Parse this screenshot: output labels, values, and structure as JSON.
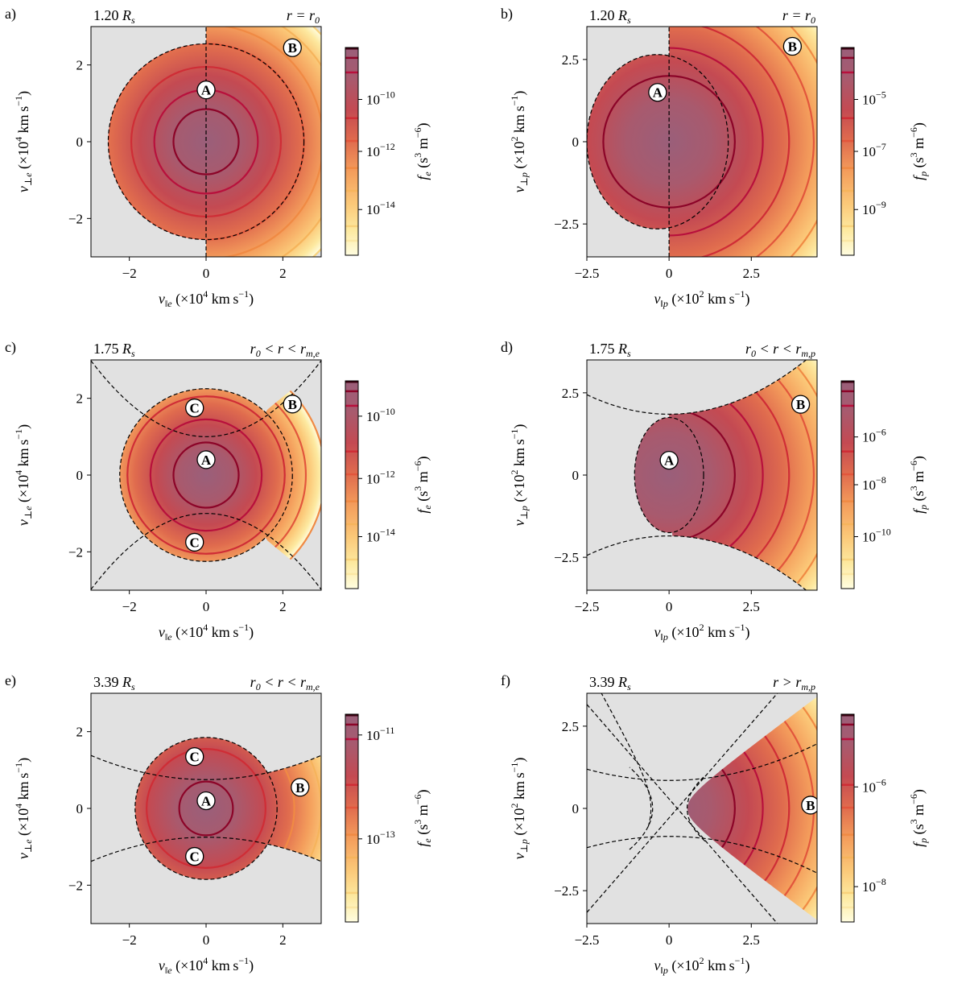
{
  "colormap": [
    "#fffde0",
    "#fde9a0",
    "#fbc878",
    "#f49e5c",
    "#e06c4e",
    "#c44a52",
    "#a85a6e",
    "#9a5f7a"
  ],
  "contour_colors": [
    "#fbe7a4",
    "#f8d27c",
    "#f6b45c",
    "#f08a44",
    "#e2563c",
    "#cf2d36",
    "#b8103c",
    "#8c0428"
  ],
  "forbidden_color": "#e1e1e1",
  "chart_data": [
    {
      "panel": "a)",
      "type": "heatmap",
      "species": "electron",
      "radius_label": "1.20",
      "radius_unit": "R",
      "radius_sub": "s",
      "region": {
        "lhs": "r = r",
        "sub": "0",
        "tail": ""
      },
      "xlim": [
        -3,
        3
      ],
      "ylim": [
        -3,
        3
      ],
      "xticks": [
        -2,
        0,
        2
      ],
      "xtick_labels": [
        "-2",
        "0",
        "2"
      ],
      "yticks": [
        -2,
        0,
        2
      ],
      "ytick_labels": [
        "-2",
        "0",
        "2"
      ],
      "xlabel": {
        "v": "v",
        "sub": "‖e",
        "rest": "(×10",
        "exp": "4",
        "unit": "km s",
        "uexp": "−1",
        "close": ")"
      },
      "ylabel": {
        "v": "v",
        "sub": "⊥e",
        "rest": "(×10",
        "exp": "4",
        "unit": "km s",
        "uexp": "−1",
        "close": ")"
      },
      "colorbar": {
        "label_f": "f",
        "label_sub": "e",
        "label_unit": "(s",
        "u1": "3",
        "m": "m",
        "u2": "−6",
        "close": ")",
        "ticks": [
          {
            "pos": 0.25,
            "exp": "−10"
          },
          {
            "pos": 0.5,
            "exp": "−12"
          },
          {
            "pos": 0.78,
            "exp": "−14"
          }
        ],
        "levels": [
          0.05,
          0.12,
          0.34,
          0.45,
          0.58,
          0.69,
          0.86,
          0.93
        ]
      },
      "contour_levels_speed": [
        0.85,
        1.35,
        1.95,
        2.55,
        3.05,
        3.6,
        4.1
      ],
      "contour_colors_idx": [
        7,
        6,
        5,
        4,
        3,
        2,
        1
      ],
      "kind": "a",
      "labels": [
        {
          "text": "A",
          "x": 0.0,
          "y": 1.35
        },
        {
          "text": "B",
          "x": 2.25,
          "y": 2.45
        }
      ]
    },
    {
      "panel": "b)",
      "type": "heatmap",
      "species": "proton",
      "radius_label": "1.20",
      "radius_unit": "R",
      "radius_sub": "s",
      "region": {
        "lhs": "r = r",
        "sub": "0",
        "tail": ""
      },
      "xlim": [
        -2.5,
        4.5
      ],
      "ylim": [
        -3.5,
        3.5
      ],
      "xticks": [
        -2.5,
        0,
        2.5
      ],
      "xtick_labels": [
        "-2.5",
        "0",
        "2.5"
      ],
      "yticks": [
        -2.5,
        0,
        2.5
      ],
      "ytick_labels": [
        "-2.5",
        "0",
        "2.5"
      ],
      "xlabel": {
        "v": "v",
        "sub": "‖p",
        "rest": "(×10",
        "exp": "2",
        "unit": "km s",
        "uexp": "−1",
        "close": ")"
      },
      "ylabel": {
        "v": "v",
        "sub": "⊥p",
        "rest": "(×10",
        "exp": "2",
        "unit": "km s",
        "uexp": "−1",
        "close": ")"
      },
      "colorbar": {
        "label_f": "f",
        "label_sub": "p",
        "label_unit": "(s",
        "u1": "3",
        "m": "m",
        "u2": "−6",
        "close": ")",
        "ticks": [
          {
            "pos": 0.25,
            "exp": "−5"
          },
          {
            "pos": 0.5,
            "exp": "−7"
          },
          {
            "pos": 0.78,
            "exp": "−9"
          }
        ],
        "levels": [
          0.05,
          0.12,
          0.34,
          0.45,
          0.58,
          0.69,
          0.86,
          0.93
        ]
      },
      "contour_levels_speed": [
        2.0,
        2.85,
        3.65,
        4.4,
        5.1,
        5.8
      ],
      "contour_colors_idx": [
        7,
        6,
        5,
        4,
        3,
        2
      ],
      "kind": "b",
      "labels": [
        {
          "text": "A",
          "x": -0.35,
          "y": 1.5
        },
        {
          "text": "B",
          "x": 3.75,
          "y": 2.9
        }
      ]
    },
    {
      "panel": "c)",
      "type": "heatmap",
      "species": "electron",
      "radius_label": "1.75",
      "radius_unit": "R",
      "radius_sub": "s",
      "region": {
        "lhs": "r",
        "sub": "0",
        "tail": " < r < r",
        "tsub": "m,e"
      },
      "xlim": [
        -3,
        3
      ],
      "ylim": [
        -3,
        3
      ],
      "xticks": [
        -2,
        0,
        2
      ],
      "xtick_labels": [
        "-2",
        "0",
        "2"
      ],
      "yticks": [
        -2,
        0,
        2
      ],
      "ytick_labels": [
        "-2",
        "0",
        "2"
      ],
      "xlabel": {
        "v": "v",
        "sub": "‖e",
        "rest": "(×10",
        "exp": "4",
        "unit": "km s",
        "uexp": "−1",
        "close": ")"
      },
      "ylabel": {
        "v": "v",
        "sub": "⊥e",
        "rest": "(×10",
        "exp": "4",
        "unit": "km s",
        "uexp": "−1",
        "close": ")"
      },
      "colorbar": {
        "label_f": "f",
        "label_sub": "e",
        "label_unit": "(s",
        "u1": "3",
        "m": "m",
        "u2": "−6",
        "close": ")",
        "ticks": [
          {
            "pos": 0.17,
            "exp": "−10"
          },
          {
            "pos": 0.47,
            "exp": "−12"
          },
          {
            "pos": 0.75,
            "exp": "−14"
          }
        ],
        "levels": [
          0.05,
          0.12,
          0.34,
          0.45,
          0.58,
          0.69,
          0.86,
          0.93
        ]
      },
      "contour_levels_speed": [
        0.85,
        1.45,
        2.05,
        2.6,
        3.1
      ],
      "contour_colors_idx": [
        7,
        6,
        5,
        4,
        3
      ],
      "kind": "c",
      "labels": [
        {
          "text": "A",
          "x": 0.0,
          "y": 0.4
        },
        {
          "text": "B",
          "x": 2.25,
          "y": 1.85
        },
        {
          "text": "C",
          "x": -0.3,
          "y": 1.75
        },
        {
          "text": "C",
          "x": -0.3,
          "y": -1.75
        }
      ]
    },
    {
      "panel": "d)",
      "type": "heatmap",
      "species": "proton",
      "radius_label": "1.75",
      "radius_unit": "R",
      "radius_sub": "s",
      "region": {
        "lhs": "r",
        "sub": "0",
        "tail": " < r < r",
        "tsub": "m,p"
      },
      "xlim": [
        -2.5,
        4.5
      ],
      "ylim": [
        -3.5,
        3.5
      ],
      "xticks": [
        -2.5,
        0,
        2.5
      ],
      "xtick_labels": [
        "-2.5",
        "0",
        "2.5"
      ],
      "yticks": [
        -2.5,
        0,
        2.5
      ],
      "ytick_labels": [
        "-2.5",
        "0",
        "2.5"
      ],
      "xlabel": {
        "v": "v",
        "sub": "‖p",
        "rest": "(×10",
        "exp": "2",
        "unit": "km s",
        "uexp": "−1",
        "close": ")"
      },
      "ylabel": {
        "v": "v",
        "sub": "⊥p",
        "rest": "(×10",
        "exp": "2",
        "unit": "km s",
        "uexp": "−1",
        "close": ")"
      },
      "colorbar": {
        "label_f": "f",
        "label_sub": "p",
        "label_unit": "(s",
        "u1": "3",
        "m": "m",
        "u2": "−6",
        "close": ")",
        "ticks": [
          {
            "pos": 0.27,
            "exp": "−6"
          },
          {
            "pos": 0.5,
            "exp": "−8"
          },
          {
            "pos": 0.75,
            "exp": "−10"
          }
        ],
        "levels": [
          0.05,
          0.12,
          0.34,
          0.45,
          0.58,
          0.69,
          0.86,
          0.93
        ]
      },
      "contour_levels_speed": [
        2.0,
        2.85,
        3.65,
        4.4,
        5.1,
        5.8
      ],
      "contour_colors_idx": [
        7,
        6,
        5,
        4,
        3,
        2
      ],
      "kind": "d",
      "labels": [
        {
          "text": "A",
          "x": 0.0,
          "y": 0.45
        },
        {
          "text": "B",
          "x": 4.0,
          "y": 2.15
        }
      ]
    },
    {
      "panel": "e)",
      "type": "heatmap",
      "species": "electron",
      "radius_label": "3.39",
      "radius_unit": "R",
      "radius_sub": "s",
      "region": {
        "lhs": "r",
        "sub": "0",
        "tail": " < r < r",
        "tsub": "m,e"
      },
      "xlim": [
        -3,
        3
      ],
      "ylim": [
        -3,
        3
      ],
      "xticks": [
        -2,
        0,
        2
      ],
      "xtick_labels": [
        "-2",
        "0",
        "2"
      ],
      "yticks": [
        -2,
        0,
        2
      ],
      "ytick_labels": [
        "-2",
        "0",
        "2"
      ],
      "xlabel": {
        "v": "v",
        "sub": "‖e",
        "rest": "(×10",
        "exp": "4",
        "unit": "km s",
        "uexp": "−1",
        "close": ")"
      },
      "ylabel": {
        "v": "v",
        "sub": "⊥e",
        "rest": "(×10",
        "exp": "4",
        "unit": "km s",
        "uexp": "−1",
        "close": ")"
      },
      "colorbar": {
        "label_f": "f",
        "label_sub": "e",
        "label_unit": "(s",
        "u1": "3",
        "m": "m",
        "u2": "−6",
        "close": ")",
        "ticks": [
          {
            "pos": 0.1,
            "exp": "−11"
          },
          {
            "pos": 0.6,
            "exp": "−13"
          }
        ],
        "levels": [
          0.05,
          0.12,
          0.34,
          0.45,
          0.58,
          0.69,
          0.86,
          0.93
        ]
      },
      "contour_levels_speed": [
        0.7,
        1.55,
        2.3,
        3.0,
        3.6
      ],
      "contour_colors_idx": [
        7,
        5,
        3,
        2,
        1
      ],
      "kind": "e",
      "labels": [
        {
          "text": "A",
          "x": 0.0,
          "y": 0.2
        },
        {
          "text": "B",
          "x": 2.45,
          "y": 0.55
        },
        {
          "text": "C",
          "x": -0.3,
          "y": 1.35
        },
        {
          "text": "C",
          "x": -0.3,
          "y": -1.25
        }
      ]
    },
    {
      "panel": "f)",
      "type": "heatmap",
      "species": "proton",
      "radius_label": "3.39",
      "radius_unit": "R",
      "radius_sub": "s",
      "region": {
        "lhs": "r > r",
        "sub": "m,p",
        "tail": ""
      },
      "xlim": [
        -2.5,
        4.5
      ],
      "ylim": [
        -3.5,
        3.5
      ],
      "xticks": [
        -2.5,
        0,
        2.5
      ],
      "xtick_labels": [
        "-2.5",
        "0",
        "2.5"
      ],
      "yticks": [
        -2.5,
        0,
        2.5
      ],
      "ytick_labels": [
        "-2.5",
        "0",
        "2.5"
      ],
      "xlabel": {
        "v": "v",
        "sub": "‖p",
        "rest": "(×10",
        "exp": "2",
        "unit": "km s",
        "uexp": "−1",
        "close": ")"
      },
      "ylabel": {
        "v": "v",
        "sub": "⊥p",
        "rest": "(×10",
        "exp": "2",
        "unit": "km s",
        "uexp": "−1",
        "close": ")"
      },
      "colorbar": {
        "label_f": "f",
        "label_sub": "p",
        "label_unit": "(s",
        "u1": "3",
        "m": "m",
        "u2": "−6",
        "close": ")",
        "ticks": [
          {
            "pos": 0.35,
            "exp": "−6"
          },
          {
            "pos": 0.83,
            "exp": "−8"
          }
        ],
        "levels": [
          0.05,
          0.12,
          0.34,
          0.45,
          0.58,
          0.69,
          0.86,
          0.93
        ]
      },
      "contour_levels_speed": [
        2.0,
        2.85,
        3.65,
        4.4,
        5.1,
        5.8
      ],
      "contour_colors_idx": [
        7,
        6,
        5,
        4,
        3,
        2
      ],
      "kind": "f",
      "labels": [
        {
          "text": "B",
          "x": 4.3,
          "y": 0.1
        }
      ]
    }
  ]
}
